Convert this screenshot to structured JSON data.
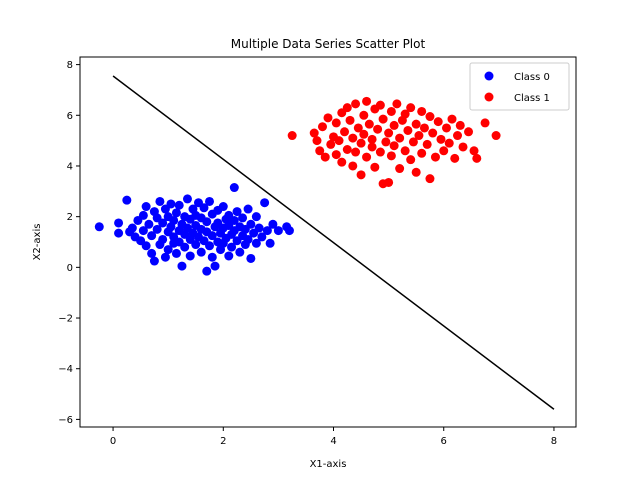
{
  "chart_data": {
    "type": "scatter",
    "title": "Multiple Data Series Scatter Plot",
    "xlabel": "X1-axis",
    "ylabel": "X2-axis",
    "xlim": [
      -0.6,
      8.4
    ],
    "ylim": [
      -6.3,
      8.3
    ],
    "xticks": [
      0,
      2,
      4,
      6,
      8
    ],
    "yticks": [
      -6,
      -4,
      -2,
      0,
      2,
      4,
      6,
      8
    ],
    "grid": false,
    "legend_position": "top-right",
    "series": [
      {
        "name": "Class 0",
        "color": "#0000ff",
        "points": [
          [
            -0.25,
            1.6
          ],
          [
            0.1,
            1.75
          ],
          [
            0.1,
            1.35
          ],
          [
            0.25,
            2.65
          ],
          [
            0.3,
            1.4
          ],
          [
            0.35,
            1.55
          ],
          [
            0.4,
            1.2
          ],
          [
            0.45,
            1.85
          ],
          [
            0.5,
            1.05
          ],
          [
            0.55,
            2.05
          ],
          [
            0.55,
            1.45
          ],
          [
            0.6,
            0.85
          ],
          [
            0.6,
            2.4
          ],
          [
            0.65,
            1.7
          ],
          [
            0.7,
            1.25
          ],
          [
            0.7,
            0.55
          ],
          [
            0.75,
            2.2
          ],
          [
            0.75,
            0.25
          ],
          [
            0.8,
            1.95
          ],
          [
            0.8,
            1.5
          ],
          [
            0.85,
            2.6
          ],
          [
            0.85,
            0.9
          ],
          [
            0.9,
            1.1
          ],
          [
            0.9,
            1.75
          ],
          [
            0.95,
            2.3
          ],
          [
            0.95,
            0.4
          ],
          [
            1.0,
            1.4
          ],
          [
            1.0,
            2.0
          ],
          [
            1.0,
            0.7
          ],
          [
            1.05,
            1.6
          ],
          [
            1.05,
            2.5
          ],
          [
            1.1,
            1.2
          ],
          [
            1.1,
            0.95
          ],
          [
            1.1,
            1.85
          ],
          [
            1.15,
            2.15
          ],
          [
            1.15,
            0.55
          ],
          [
            1.2,
            1.45
          ],
          [
            1.2,
            1.0
          ],
          [
            1.2,
            2.45
          ],
          [
            1.25,
            1.7
          ],
          [
            1.25,
            0.05
          ],
          [
            1.3,
            1.3
          ],
          [
            1.3,
            2.0
          ],
          [
            1.3,
            0.8
          ],
          [
            1.35,
            2.7
          ],
          [
            1.35,
            1.55
          ],
          [
            1.4,
            1.1
          ],
          [
            1.4,
            1.9
          ],
          [
            1.4,
            0.45
          ],
          [
            1.45,
            2.3
          ],
          [
            1.45,
            1.35
          ],
          [
            1.5,
            1.65
          ],
          [
            1.5,
            0.9
          ],
          [
            1.5,
            2.05
          ],
          [
            1.55,
            1.2
          ],
          [
            1.55,
            2.55
          ],
          [
            1.6,
            1.5
          ],
          [
            1.6,
            0.6
          ],
          [
            1.6,
            1.95
          ],
          [
            1.65,
            1.05
          ],
          [
            1.65,
            2.35
          ],
          [
            1.7,
            -0.15
          ],
          [
            1.7,
            1.4
          ],
          [
            1.7,
            1.8
          ],
          [
            1.75,
            0.85
          ],
          [
            1.75,
            2.6
          ],
          [
            1.8,
            1.25
          ],
          [
            1.8,
            2.1
          ],
          [
            1.8,
            0.4
          ],
          [
            1.85,
            1.6
          ],
          [
            1.85,
            0.05
          ],
          [
            1.9,
            1.0
          ],
          [
            1.9,
            2.25
          ],
          [
            1.9,
            1.75
          ],
          [
            1.95,
            1.35
          ],
          [
            1.95,
            0.7
          ],
          [
            2.0,
            1.55
          ],
          [
            2.0,
            2.4
          ],
          [
            2.0,
            0.95
          ],
          [
            2.05,
            1.9
          ],
          [
            2.05,
            1.15
          ],
          [
            2.1,
            0.45
          ],
          [
            2.1,
            1.65
          ],
          [
            2.1,
            2.05
          ],
          [
            2.15,
            1.3
          ],
          [
            2.15,
            0.8
          ],
          [
            2.2,
            1.85
          ],
          [
            2.2,
            3.15
          ],
          [
            2.2,
            1.45
          ],
          [
            2.25,
            1.05
          ],
          [
            2.25,
            2.2
          ],
          [
            2.3,
            1.6
          ],
          [
            2.3,
            0.6
          ],
          [
            2.35,
            1.25
          ],
          [
            2.35,
            1.95
          ],
          [
            2.4,
            0.9
          ],
          [
            2.4,
            1.5
          ],
          [
            2.45,
            2.3
          ],
          [
            2.45,
            1.1
          ],
          [
            2.5,
            1.7
          ],
          [
            2.5,
            0.35
          ],
          [
            2.55,
            1.35
          ],
          [
            2.6,
            2.0
          ],
          [
            2.6,
            0.95
          ],
          [
            2.65,
            1.55
          ],
          [
            2.7,
            1.2
          ],
          [
            2.75,
            2.55
          ],
          [
            2.8,
            1.45
          ],
          [
            2.85,
            0.95
          ],
          [
            2.9,
            1.7
          ],
          [
            3.0,
            1.45
          ],
          [
            3.15,
            1.6
          ],
          [
            3.2,
            1.45
          ]
        ]
      },
      {
        "name": "Class 1",
        "color": "#ff0000",
        "points": [
          [
            3.25,
            5.2
          ],
          [
            3.65,
            5.3
          ],
          [
            3.7,
            5.0
          ],
          [
            3.75,
            4.6
          ],
          [
            3.8,
            5.55
          ],
          [
            3.85,
            4.35
          ],
          [
            3.9,
            5.9
          ],
          [
            3.95,
            4.85
          ],
          [
            4.0,
            5.15
          ],
          [
            4.05,
            4.45
          ],
          [
            4.05,
            5.7
          ],
          [
            4.1,
            5.0
          ],
          [
            4.15,
            6.1
          ],
          [
            4.15,
            4.15
          ],
          [
            4.2,
            5.35
          ],
          [
            4.25,
            4.65
          ],
          [
            4.25,
            6.3
          ],
          [
            4.3,
            5.8
          ],
          [
            4.35,
            4.0
          ],
          [
            4.35,
            5.1
          ],
          [
            4.4,
            6.45
          ],
          [
            4.4,
            4.55
          ],
          [
            4.45,
            5.5
          ],
          [
            4.5,
            3.65
          ],
          [
            4.5,
            4.9
          ],
          [
            4.55,
            6.0
          ],
          [
            4.55,
            5.25
          ],
          [
            4.6,
            4.35
          ],
          [
            4.6,
            6.55
          ],
          [
            4.65,
            5.65
          ],
          [
            4.7,
            4.75
          ],
          [
            4.7,
            5.05
          ],
          [
            4.75,
            6.25
          ],
          [
            4.75,
            3.95
          ],
          [
            4.8,
            5.45
          ],
          [
            4.85,
            4.55
          ],
          [
            4.85,
            6.4
          ],
          [
            4.9,
            5.85
          ],
          [
            4.9,
            3.3
          ],
          [
            4.95,
            4.95
          ],
          [
            5.0,
            3.35
          ],
          [
            5.0,
            5.3
          ],
          [
            5.05,
            6.15
          ],
          [
            5.05,
            4.4
          ],
          [
            5.1,
            5.6
          ],
          [
            5.1,
            4.8
          ],
          [
            5.15,
            6.45
          ],
          [
            5.2,
            5.1
          ],
          [
            5.2,
            3.9
          ],
          [
            5.25,
            5.8
          ],
          [
            5.3,
            4.6
          ],
          [
            5.3,
            6.05
          ],
          [
            5.35,
            5.4
          ],
          [
            5.4,
            4.25
          ],
          [
            5.4,
            6.3
          ],
          [
            5.45,
            4.95
          ],
          [
            5.5,
            5.65
          ],
          [
            5.5,
            3.75
          ],
          [
            5.55,
            5.2
          ],
          [
            5.6,
            6.15
          ],
          [
            5.6,
            4.5
          ],
          [
            5.65,
            5.5
          ],
          [
            5.7,
            4.85
          ],
          [
            5.75,
            5.95
          ],
          [
            5.75,
            3.5
          ],
          [
            5.8,
            5.3
          ],
          [
            5.85,
            4.35
          ],
          [
            5.9,
            5.75
          ],
          [
            5.95,
            5.05
          ],
          [
            6.0,
            4.6
          ],
          [
            6.05,
            5.5
          ],
          [
            6.1,
            4.9
          ],
          [
            6.15,
            5.85
          ],
          [
            6.2,
            4.3
          ],
          [
            6.25,
            5.2
          ],
          [
            6.3,
            5.6
          ],
          [
            6.35,
            4.75
          ],
          [
            6.45,
            5.35
          ],
          [
            6.55,
            4.6
          ],
          [
            6.6,
            4.3
          ],
          [
            6.75,
            5.7
          ],
          [
            6.95,
            5.2
          ]
        ]
      }
    ],
    "line": {
      "color": "#000000",
      "points": [
        [
          0,
          7.55
        ],
        [
          8,
          -5.6
        ]
      ]
    }
  }
}
